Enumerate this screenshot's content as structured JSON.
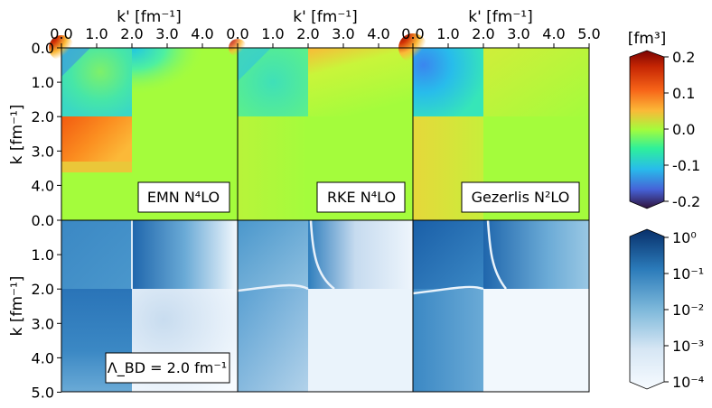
{
  "chart_data": {
    "type": "heatmap",
    "x_label": "k' [fm⁻¹]",
    "y_label": "k [fm⁻¹]",
    "x_ticks": [
      "0.0",
      "1.0",
      "2.0",
      "3.0",
      "4.0",
      "5.0"
    ],
    "y_ticks_top": [
      "0.0",
      "1.0",
      "2.0",
      "3.0",
      "4.0"
    ],
    "y_ticks_bottom": [
      "0.0",
      "1.0",
      "2.0",
      "3.0",
      "4.0",
      "5.0"
    ],
    "xlim": [
      0,
      5
    ],
    "ylim": [
      0,
      5
    ],
    "top_colorbar": {
      "label": "[fm³]",
      "ticks": [
        "0.2",
        "0.1",
        "0.0",
        "-0.1",
        "-0.2"
      ],
      "range": [
        -0.2,
        0.2
      ],
      "colormap": "turbo"
    },
    "bottom_colorbar": {
      "scale": "log",
      "ticks": [
        "10⁰",
        "10⁻¹",
        "10⁻²",
        "10⁻³",
        "10⁻⁴"
      ],
      "range": [
        0.0001,
        1
      ],
      "colormap": "blues"
    },
    "panels_top": [
      {
        "label": "EMN N⁴LO",
        "q_tl": 0.0,
        "q_tr": -0.03,
        "q_bl": 0.13,
        "q_br": 0.0
      },
      {
        "label": "RKE N⁴LO",
        "q_tl": -0.02,
        "q_tr": 0.0,
        "q_bl": 0.01,
        "q_br": 0.0
      },
      {
        "label": "Gezerlis N²LO",
        "q_tl": -0.06,
        "q_tr": 0.0,
        "q_bl": 0.05,
        "q_br": 0.0
      }
    ],
    "panels_bottom": [
      {
        "label": "Λ_BD = 2.0 fm⁻¹"
      },
      {
        "label": ""
      },
      {
        "label": ""
      }
    ]
  }
}
